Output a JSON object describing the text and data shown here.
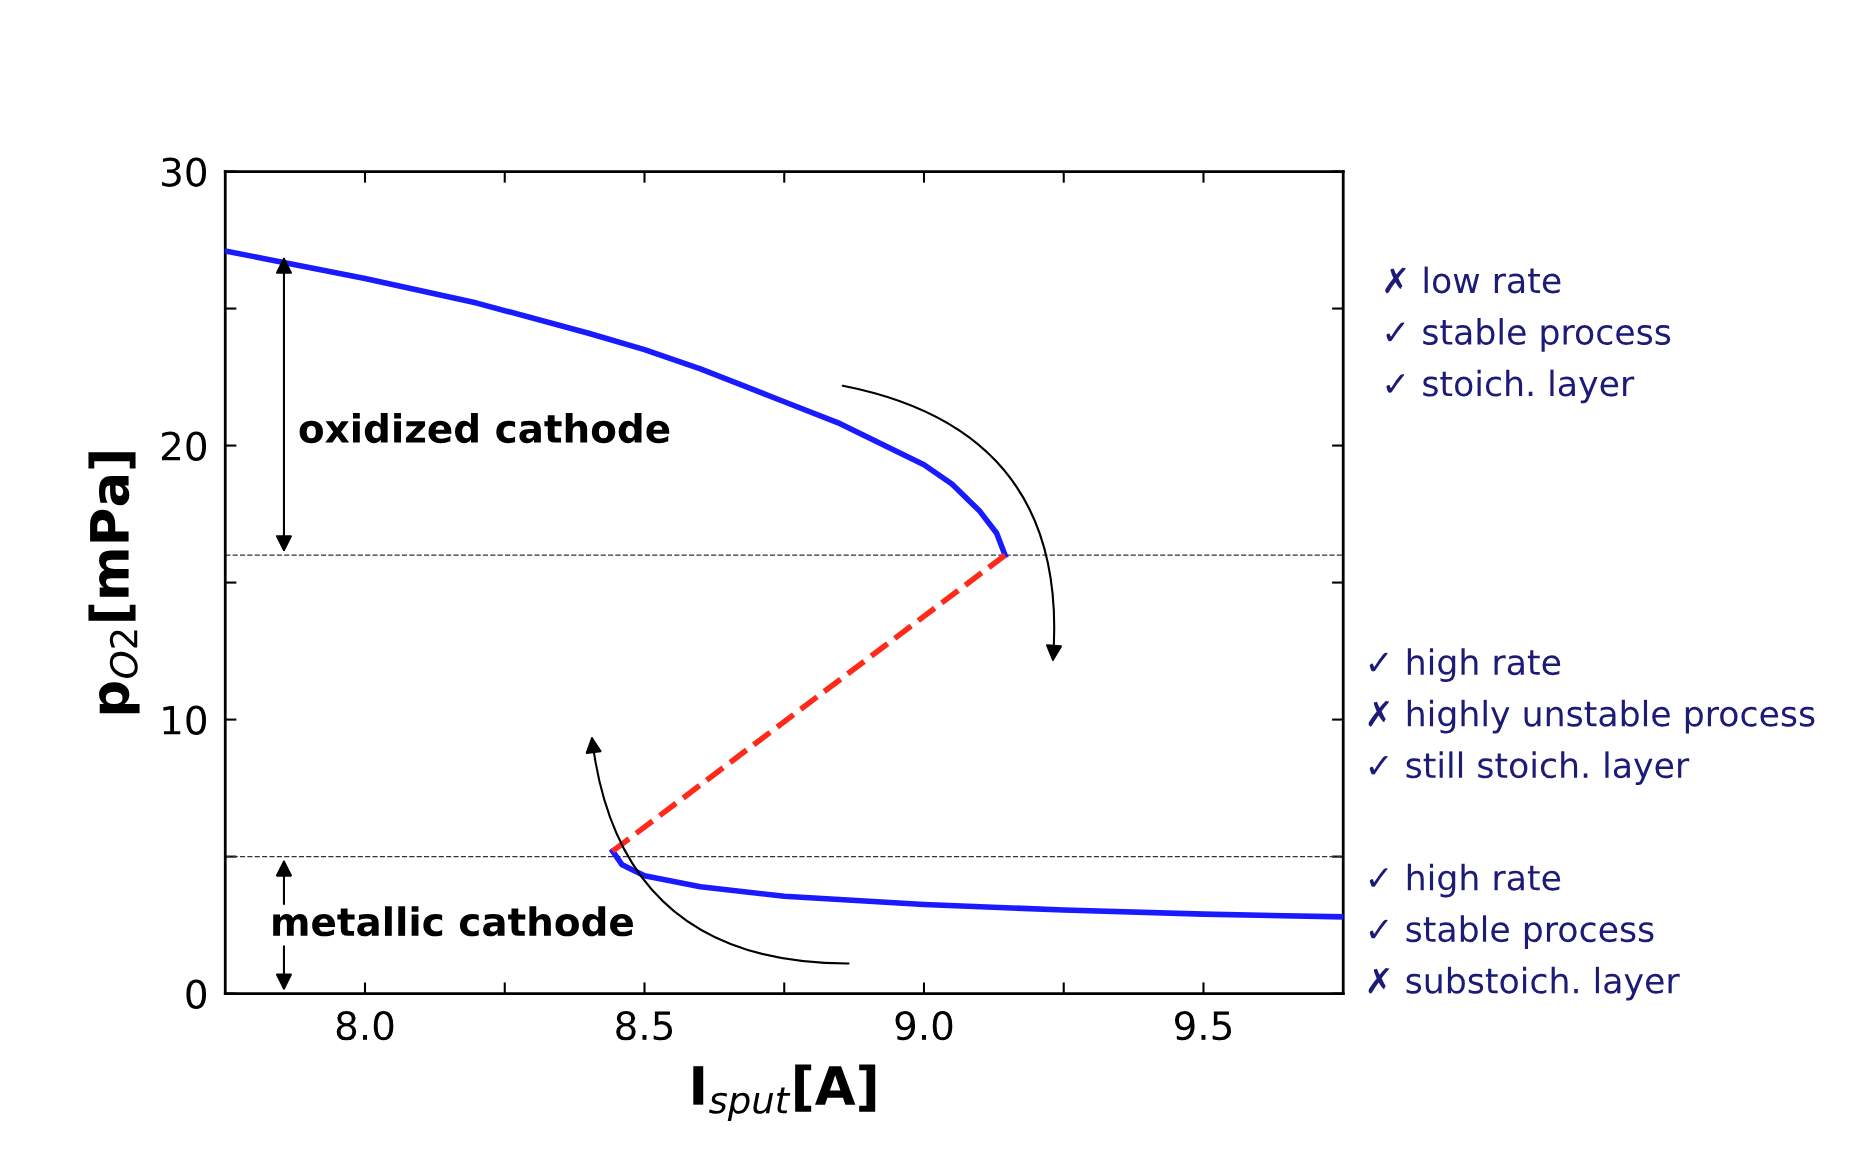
{
  "chart_data": {
    "type": "line",
    "xlabel": "I$_{sput}$[A]",
    "ylabel": "p$_{O2}$[mPa]",
    "xlim": [
      7.75,
      9.75
    ],
    "ylim": [
      0,
      30
    ],
    "xticks": [
      {
        "value": 8.0,
        "label": "8.0"
      },
      {
        "value": 8.25,
        "label": null
      },
      {
        "value": 8.5,
        "label": "8.5"
      },
      {
        "value": 8.75,
        "label": null
      },
      {
        "value": 9.0,
        "label": "9.0"
      },
      {
        "value": 9.25,
        "label": null
      },
      {
        "value": 9.5,
        "label": "9.5"
      }
    ],
    "yticks": [
      0,
      {
        "value": 5,
        "label": null
      },
      10,
      {
        "value": 15,
        "label": null
      },
      20,
      {
        "value": 25,
        "label": null
      },
      30
    ],
    "grid": false,
    "legend": false,
    "marker": "none",
    "series": [
      {
        "color": "#1a1aff",
        "line_style": "solid",
        "x": [
          7.75,
          7.9,
          8.0,
          8.2,
          8.4,
          8.5,
          8.6,
          8.75,
          8.85,
          9.0,
          9.05,
          9.1,
          9.13,
          9.145
        ],
        "values": [
          27.1,
          26.5,
          26.1,
          25.2,
          24.1,
          23.5,
          22.8,
          21.6,
          20.8,
          19.3,
          18.6,
          17.6,
          16.8,
          16.0
        ]
      },
      {
        "color": "#1a1aff",
        "line_style": "solid",
        "x": [
          8.443,
          8.46,
          8.5,
          8.6,
          8.75,
          9.0,
          9.25,
          9.5,
          9.75
        ],
        "values": [
          5.2,
          4.7,
          4.3,
          3.9,
          3.55,
          3.25,
          3.05,
          2.9,
          2.8
        ]
      },
      {
        "color": "#ff2a1a",
        "line_style": "dashed",
        "x": [
          8.443,
          9.145
        ],
        "values": [
          5.2,
          16.0
        ]
      }
    ],
    "ref_lines": [
      {
        "axis": "y",
        "value": 16,
        "color": "#333333",
        "line_style": "dashed"
      },
      {
        "axis": "y",
        "value": 5,
        "color": "#333333",
        "line_style": "dashed"
      }
    ],
    "annotations": [
      "oxidized cathode",
      "metallic cathode",
      "✗ low rate",
      "✓ stable process",
      "✓ stoich. layer",
      "✓ high rate",
      "✗ highly unstable process",
      "✓ still stoich. layer",
      "✓ high rate",
      "✓ stable process",
      "✗ substoich. layer"
    ]
  }
}
